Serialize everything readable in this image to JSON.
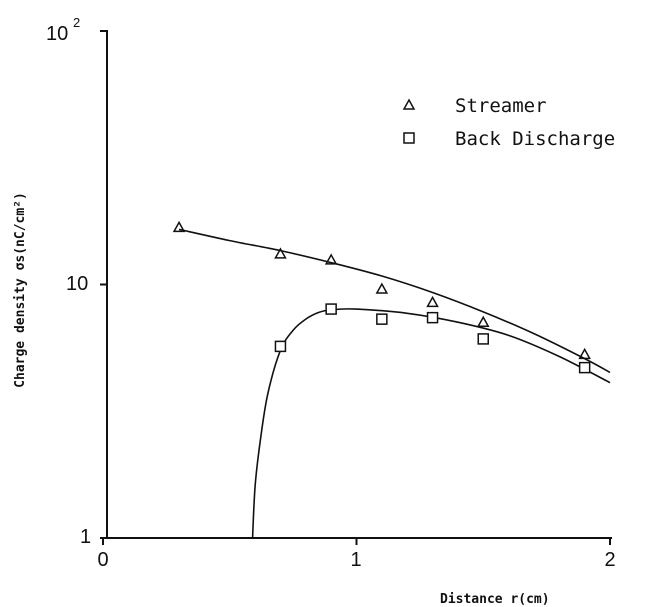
{
  "chart_data": {
    "type": "scatter",
    "xlabel": "Distance r(cm)",
    "ylabel": "Charge density σs(nC/cm²)",
    "y_scale": "log",
    "xlim": [
      0,
      2
    ],
    "ylim": [
      1,
      100
    ],
    "x_ticks": [
      {
        "value": 0,
        "label": "0"
      },
      {
        "value": 1,
        "label": "1"
      },
      {
        "value": 2,
        "label": "2"
      }
    ],
    "y_ticks": [
      {
        "value": 1,
        "label": "1"
      },
      {
        "value": 10,
        "label": "10"
      },
      {
        "value": 100,
        "label": "10",
        "exponent": "2"
      }
    ],
    "legend_position": "top-right",
    "series": [
      {
        "name": "Streamer",
        "marker": "triangle",
        "x": [
          0.3,
          0.7,
          0.9,
          1.1,
          1.3,
          1.5,
          1.9
        ],
        "y": [
          16.8,
          13.2,
          12.5,
          9.6,
          8.5,
          7.1,
          5.3
        ],
        "fit_curve": {
          "x": [
            0.3,
            0.5,
            0.7,
            0.9,
            1.1,
            1.3,
            1.5,
            1.7,
            1.9,
            2.0
          ],
          "y": [
            16.5,
            14.9,
            13.6,
            12.2,
            10.8,
            9.3,
            7.8,
            6.4,
            5.1,
            4.5
          ]
        }
      },
      {
        "name": "Back Discharge",
        "marker": "square",
        "x": [
          0.7,
          0.9,
          1.1,
          1.3,
          1.5,
          1.9
        ],
        "y": [
          5.7,
          8.0,
          7.3,
          7.4,
          6.1,
          4.7
        ],
        "fit_curve": {
          "x": [
            0.59,
            0.6,
            0.62,
            0.65,
            0.7,
            0.75,
            0.8,
            0.85,
            0.9,
            1.0,
            1.2,
            1.4,
            1.6,
            1.8,
            2.0
          ],
          "y": [
            1.0,
            1.6,
            2.4,
            3.7,
            5.5,
            6.6,
            7.3,
            7.75,
            7.95,
            8.0,
            7.7,
            7.1,
            6.3,
            5.2,
            4.1
          ]
        }
      }
    ]
  }
}
